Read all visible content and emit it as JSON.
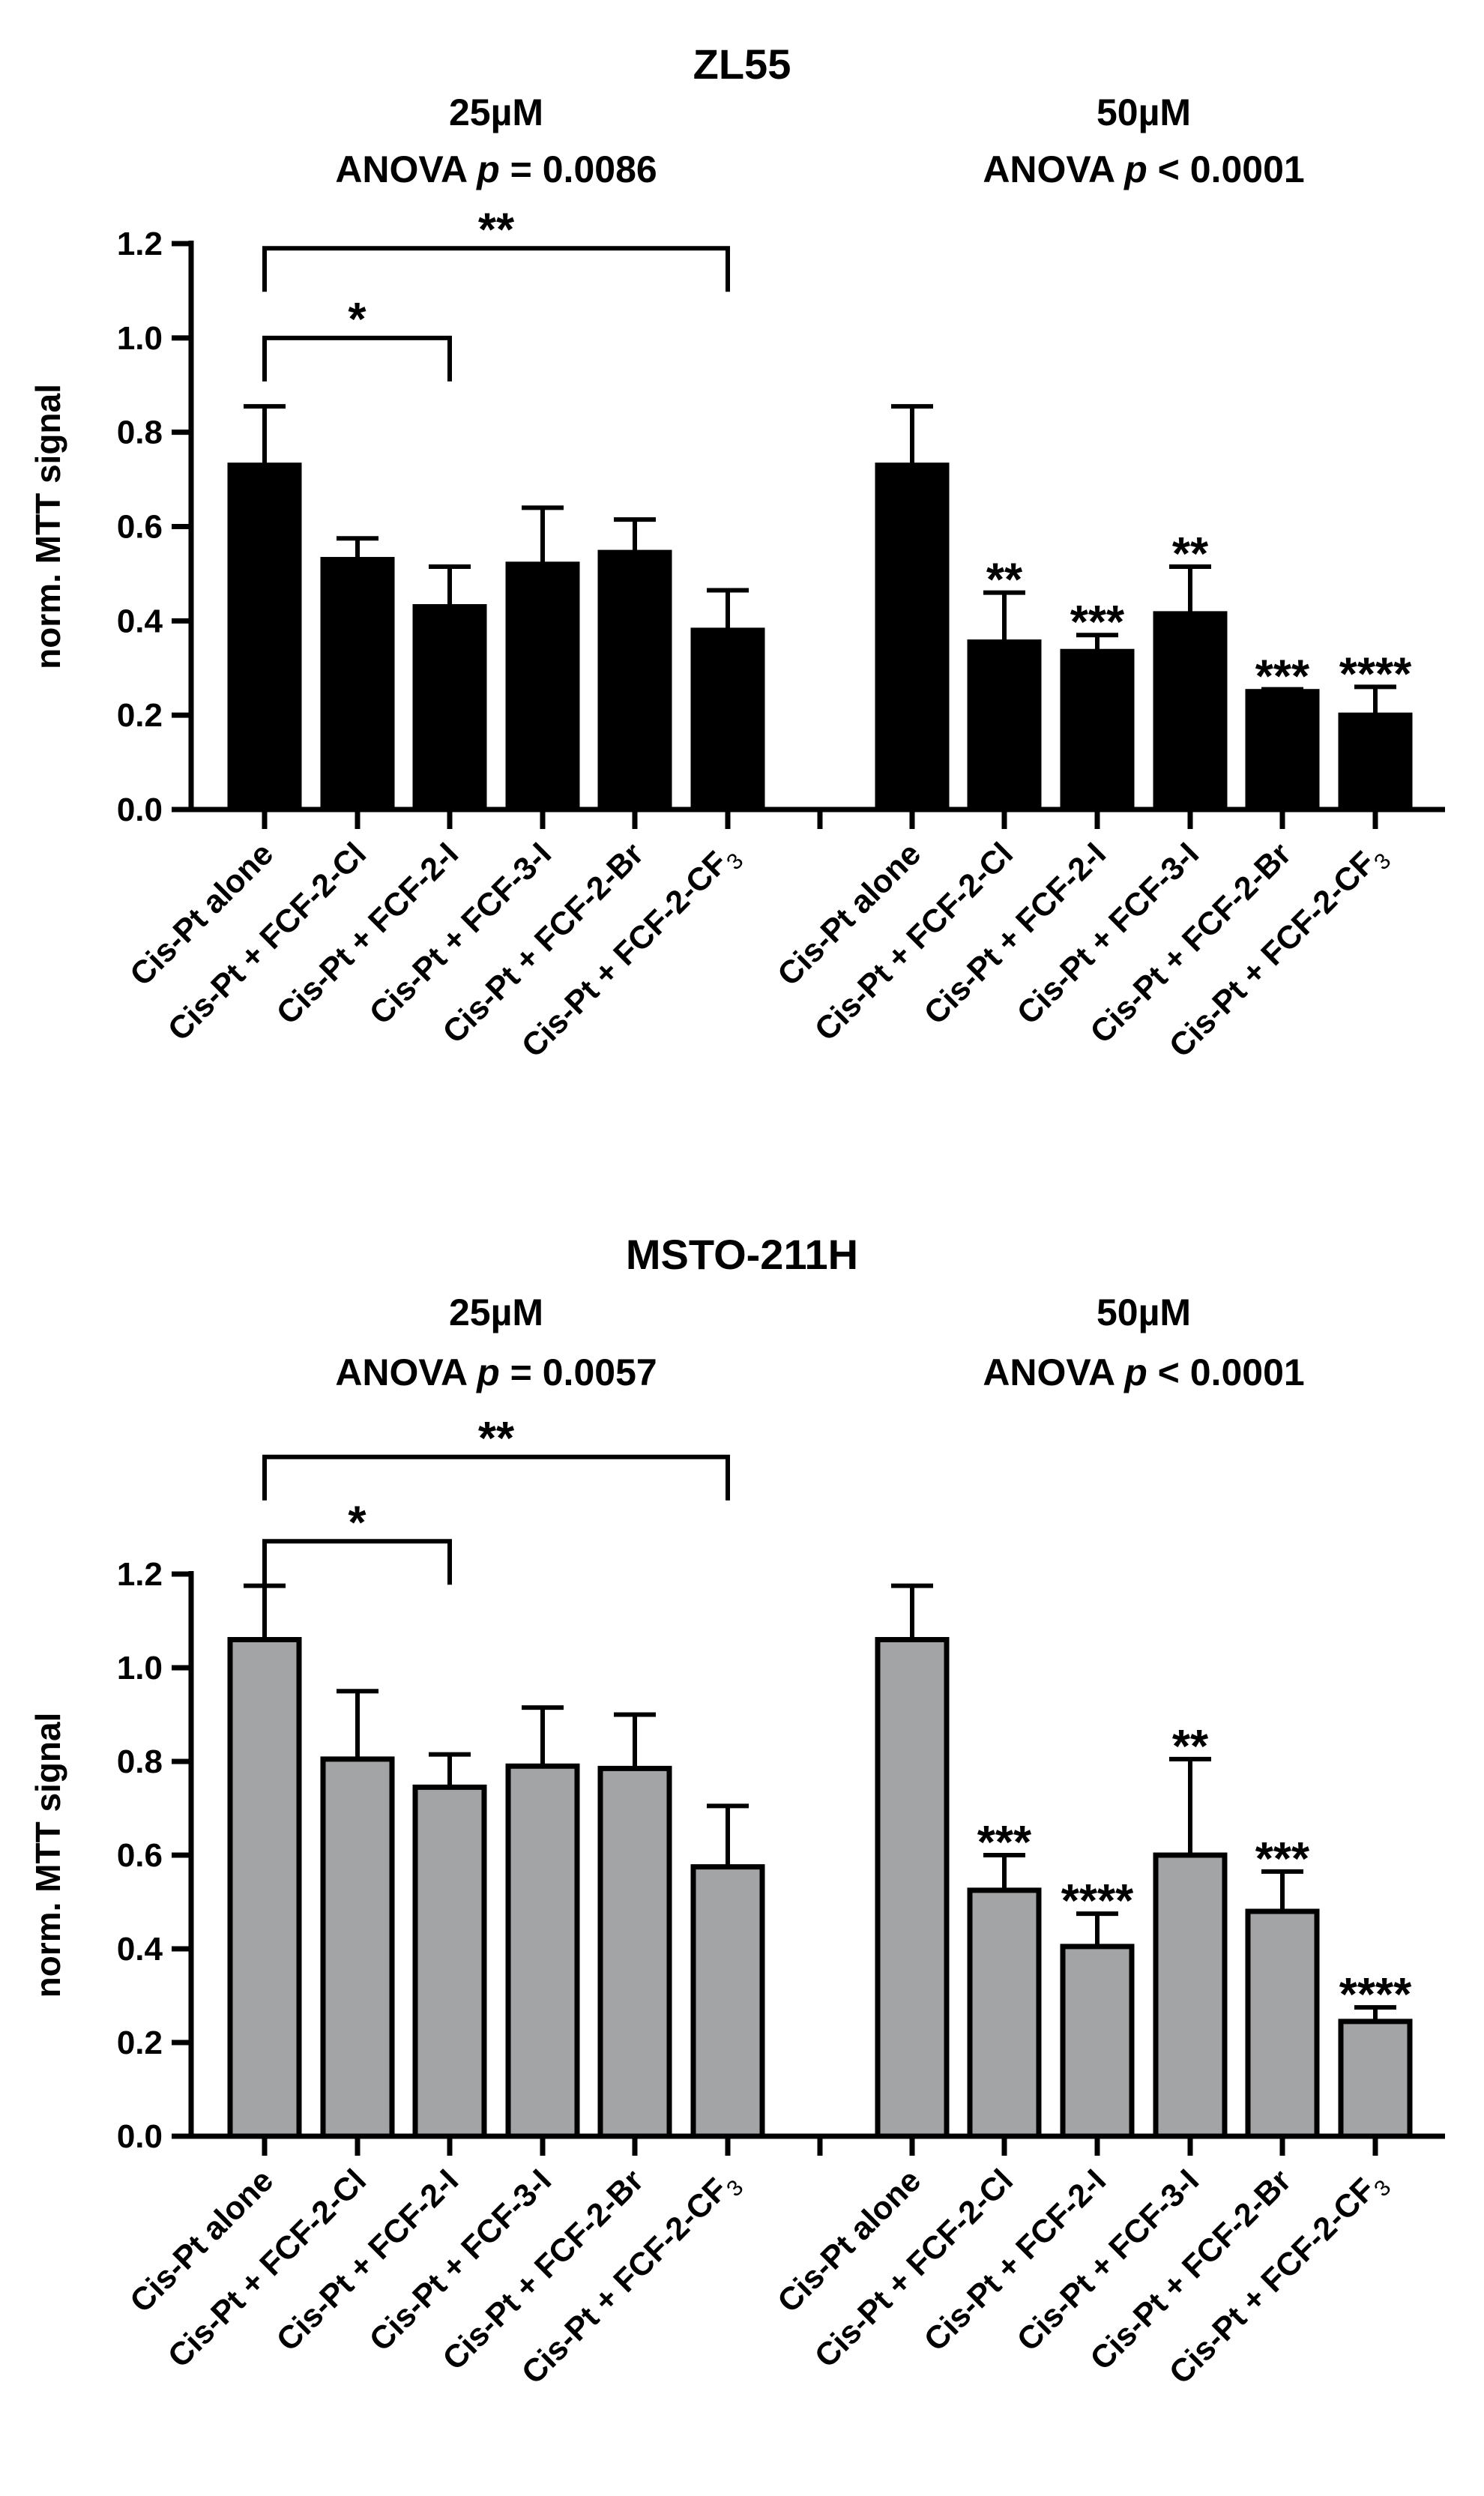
{
  "chart_data": [
    {
      "type": "bar",
      "title": "ZL55",
      "ylabel": "norm. MTT signal",
      "ylim": [
        0,
        1.2
      ],
      "yticks": [
        "0.0",
        "0.2",
        "0.4",
        "0.6",
        "0.8",
        "1.0",
        "1.2"
      ],
      "bar_color": "#000000",
      "categories": [
        "Cis-Pt alone",
        "Cis-Pt + FCF-2-Cl",
        "Cis-Pt + FCF-2-I",
        "Cis-Pt + FCF-3-I",
        "Cis-Pt + FCF-2-Br",
        "Cis-Pt + FCF-2-CF"
      ],
      "subscript": "3",
      "groups": [
        {
          "label": "25µM",
          "anova": {
            "prefix": "ANOVA ",
            "p": "p",
            "rest": " = 0.0086"
          },
          "values": [
            0.73,
            0.53,
            0.43,
            0.52,
            0.545,
            0.38
          ],
          "errors": [
            0.125,
            0.045,
            0.085,
            0.12,
            0.07,
            0.085
          ],
          "stars": [
            "",
            "",
            "",
            "",
            "",
            ""
          ],
          "brackets": [
            {
              "from": 0,
              "to": 2,
              "label": "*",
              "y": 1.0
            },
            {
              "from": 0,
              "to": 5,
              "label": "**",
              "y": 1.19
            }
          ]
        },
        {
          "label": "50µM",
          "anova": {
            "prefix": "ANOVA ",
            "p": "p",
            "rest": " < 0.0001"
          },
          "values": [
            0.73,
            0.355,
            0.335,
            0.415,
            0.25,
            0.2
          ],
          "errors": [
            0.125,
            0.105,
            0.035,
            0.1,
            0.005,
            0.06
          ],
          "stars": [
            "",
            "**",
            "***",
            "**",
            "***",
            "****"
          ],
          "brackets": []
        }
      ]
    },
    {
      "type": "bar",
      "title": "MSTO-211H",
      "ylabel": "norm. MTT signal",
      "ylim": [
        0,
        1.2
      ],
      "yticks": [
        "0.0",
        "0.2",
        "0.4",
        "0.6",
        "0.8",
        "1.0",
        "1.2"
      ],
      "bar_color": "#a3a4a6",
      "categories": [
        "Cis-Pt alone",
        "Cis-Pt + FCF-2-Cl",
        "Cis-Pt + FCF-2-I",
        "Cis-Pt + FCF-3-I",
        "Cis-Pt + FCF-2-Br",
        "Cis-Pt + FCF-2-CF"
      ],
      "subscript": "3",
      "groups": [
        {
          "label": "25µM",
          "anova": {
            "prefix": "ANOVA ",
            "p": "p",
            "rest": " = 0.0057"
          },
          "values": [
            1.06,
            0.805,
            0.745,
            0.79,
            0.785,
            0.575
          ],
          "errors": [
            0.115,
            0.145,
            0.07,
            0.125,
            0.115,
            0.13
          ],
          "stars": [
            "",
            "",
            "",
            "",
            "",
            ""
          ],
          "brackets": [
            {
              "from": 0,
              "to": 2,
              "label": "*",
              "y": 1.27
            },
            {
              "from": 0,
              "to": 5,
              "label": "**",
              "y": 1.45
            }
          ]
        },
        {
          "label": "50µM",
          "anova": {
            "prefix": "ANOVA ",
            "p": "p",
            "rest": " < 0.0001"
          },
          "values": [
            1.06,
            0.525,
            0.405,
            0.6,
            0.48,
            0.245
          ],
          "errors": [
            0.115,
            0.075,
            0.07,
            0.205,
            0.085,
            0.03
          ],
          "stars": [
            "",
            "***",
            "****",
            "**",
            "***",
            "****"
          ],
          "brackets": []
        }
      ]
    }
  ]
}
